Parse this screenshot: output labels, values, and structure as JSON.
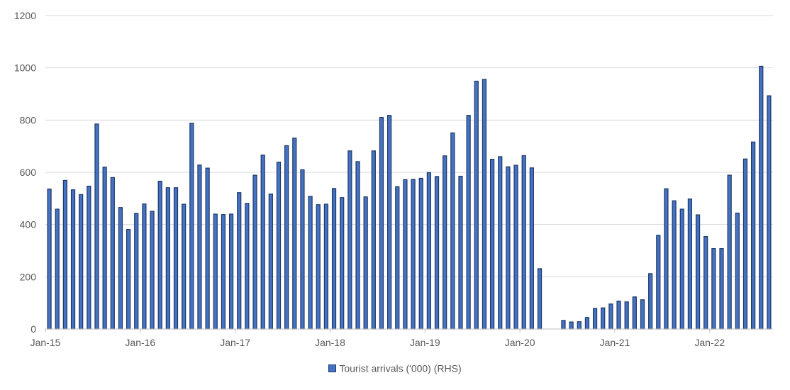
{
  "chart_data": {
    "type": "bar",
    "title": "",
    "xlabel": "",
    "ylabel": "",
    "ylim": [
      0,
      1200
    ],
    "y_ticks": [
      0,
      200,
      400,
      600,
      800,
      1000,
      1200
    ],
    "x_tick_labels": [
      "Jan-15",
      "Jan-16",
      "Jan-17",
      "Jan-18",
      "Jan-19",
      "Jan-20",
      "Jan-21",
      "Jan-22"
    ],
    "grid": true,
    "legend_position": "bottom",
    "colors": {
      "bar_fill": "#4472c4",
      "bar_stroke": "#1f3864",
      "grid": "#d9d9d9",
      "text": "#595959"
    },
    "categories": [
      "Jan-15",
      "Feb-15",
      "Mar-15",
      "Apr-15",
      "May-15",
      "Jun-15",
      "Jul-15",
      "Aug-15",
      "Sep-15",
      "Oct-15",
      "Nov-15",
      "Dec-15",
      "Jan-16",
      "Feb-16",
      "Mar-16",
      "Apr-16",
      "May-16",
      "Jun-16",
      "Jul-16",
      "Aug-16",
      "Sep-16",
      "Oct-16",
      "Nov-16",
      "Dec-16",
      "Jan-17",
      "Feb-17",
      "Mar-17",
      "Apr-17",
      "May-17",
      "Jun-17",
      "Jul-17",
      "Aug-17",
      "Sep-17",
      "Oct-17",
      "Nov-17",
      "Dec-17",
      "Jan-18",
      "Feb-18",
      "Mar-18",
      "Apr-18",
      "May-18",
      "Jun-18",
      "Jul-18",
      "Aug-18",
      "Sep-18",
      "Oct-18",
      "Nov-18",
      "Dec-18",
      "Jan-19",
      "Feb-19",
      "Mar-19",
      "Apr-19",
      "May-19",
      "Jun-19",
      "Jul-19",
      "Aug-19",
      "Sep-19",
      "Oct-19",
      "Nov-19",
      "Dec-19",
      "Jan-20",
      "Feb-20",
      "Mar-20",
      "Apr-20",
      "May-20",
      "Jun-20",
      "Jul-20",
      "Aug-20",
      "Sep-20",
      "Oct-20",
      "Nov-20",
      "Dec-20",
      "Jan-21",
      "Feb-21",
      "Mar-21",
      "Apr-21",
      "May-21",
      "Jun-21",
      "Jul-21",
      "Aug-21",
      "Sep-21",
      "Oct-21",
      "Nov-21",
      "Dec-21",
      "Jan-22",
      "Feb-22",
      "Mar-22",
      "Apr-22",
      "May-22",
      "Jun-22",
      "Jul-22",
      "Aug-22"
    ],
    "series": [
      {
        "name": "Tourist arrivals ('000) (RHS)",
        "values": [
          536,
          459,
          569,
          533,
          515,
          547,
          785,
          620,
          580,
          465,
          381,
          443,
          479,
          451,
          566,
          541,
          541,
          478,
          788,
          628,
          616,
          440,
          438,
          440,
          522,
          481,
          589,
          666,
          517,
          639,
          702,
          731,
          610,
          508,
          476,
          478,
          538,
          503,
          682,
          641,
          506,
          682,
          810,
          818,
          545,
          572,
          573,
          577,
          599,
          584,
          663,
          751,
          585,
          818,
          949,
          956,
          650,
          660,
          621,
          627,
          664,
          617,
          231,
          0,
          0,
          33,
          27,
          28,
          44,
          79,
          81,
          96,
          107,
          104,
          123,
          112,
          212,
          359,
          537,
          491,
          459,
          498,
          437,
          354,
          308,
          308,
          589,
          444,
          651,
          716,
          1006,
          893
        ]
      }
    ]
  }
}
